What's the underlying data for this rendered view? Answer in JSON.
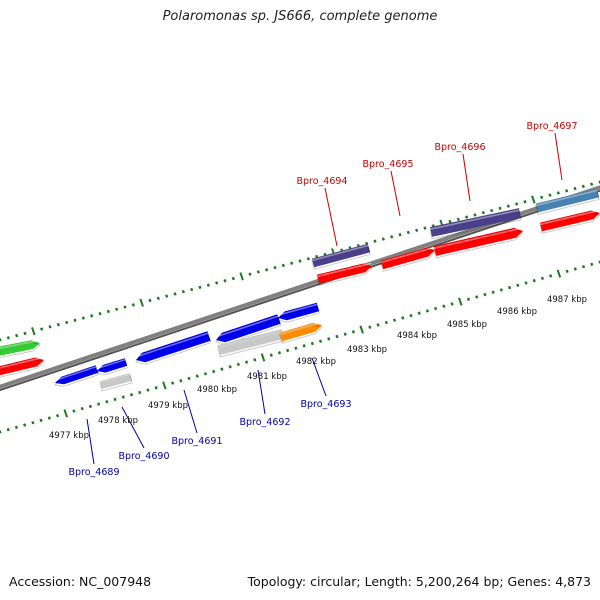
{
  "title": "Polaromonas sp. JS666, complete genome",
  "footer": {
    "accession": "Accession: NC_007948",
    "stats": "Topology: circular; Length: 5,200,264 bp; Genes: 4,873"
  },
  "colors": {
    "backbone": "#808080",
    "ticks": "#1e7a1e",
    "label_top": "#cc0000",
    "label_bottom": "#0000aa",
    "red": "#ff0000",
    "blue": "#0000ee",
    "navy": "#4a3f8a",
    "steel": "#4682b4",
    "gray": "#c8c8c8",
    "green": "#33cc33",
    "orange": "#ff8c00"
  },
  "scale": {
    "unit": "kbp",
    "tick_labels": [
      "4977 kbp",
      "4978 kbp",
      "4979 kbp",
      "4980 kbp",
      "4981 kbp",
      "4982 kbp",
      "4983 kbp",
      "4984 kbp",
      "4985 kbp",
      "4986 kbp",
      "4987 kbp"
    ],
    "tick_values": [
      4977,
      4978,
      4979,
      4980,
      4981,
      4982,
      4983,
      4984,
      4985,
      4986,
      4987
    ]
  },
  "labels_top": [
    "Bpro_4694",
    "Bpro_4695",
    "Bpro_4696",
    "Bpro_4697"
  ],
  "labels_bottom": [
    "Bpro_4689",
    "Bpro_4690",
    "Bpro_4691",
    "Bpro_4692",
    "Bpro_4693"
  ]
}
